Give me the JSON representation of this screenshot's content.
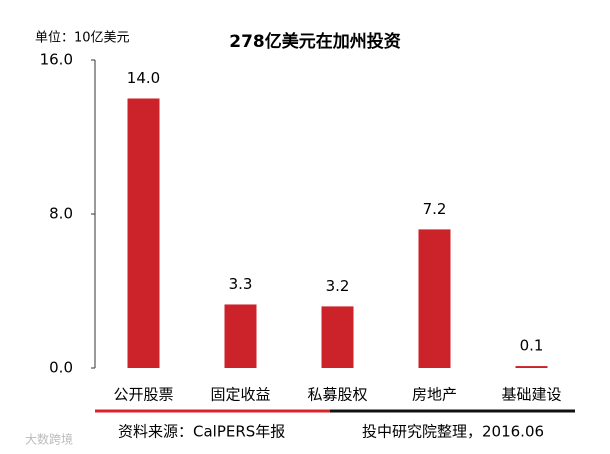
{
  "chart_data": {
    "type": "bar",
    "title": "278亿美元在加州投资",
    "unit_label": "单位：10亿美元",
    "categories": [
      "公开股票",
      "固定收益",
      "私募股权",
      "房地产",
      "基础建设"
    ],
    "values": [
      14.0,
      3.3,
      3.2,
      7.2,
      0.1
    ],
    "value_labels": [
      "14.0",
      "3.3",
      "3.2",
      "7.2",
      "0.1"
    ],
    "color": "#cc2229",
    "ylim": [
      0,
      16
    ],
    "yticks": [
      {
        "value": 0,
        "label": "0.0"
      },
      {
        "value": 8,
        "label": "8.0"
      },
      {
        "value": 16,
        "label": "16.0"
      }
    ],
    "grid": false,
    "source": "资料来源：CalPERS年报",
    "note": "投中研究院整理，2016.06",
    "watermark": "大数跨境"
  }
}
